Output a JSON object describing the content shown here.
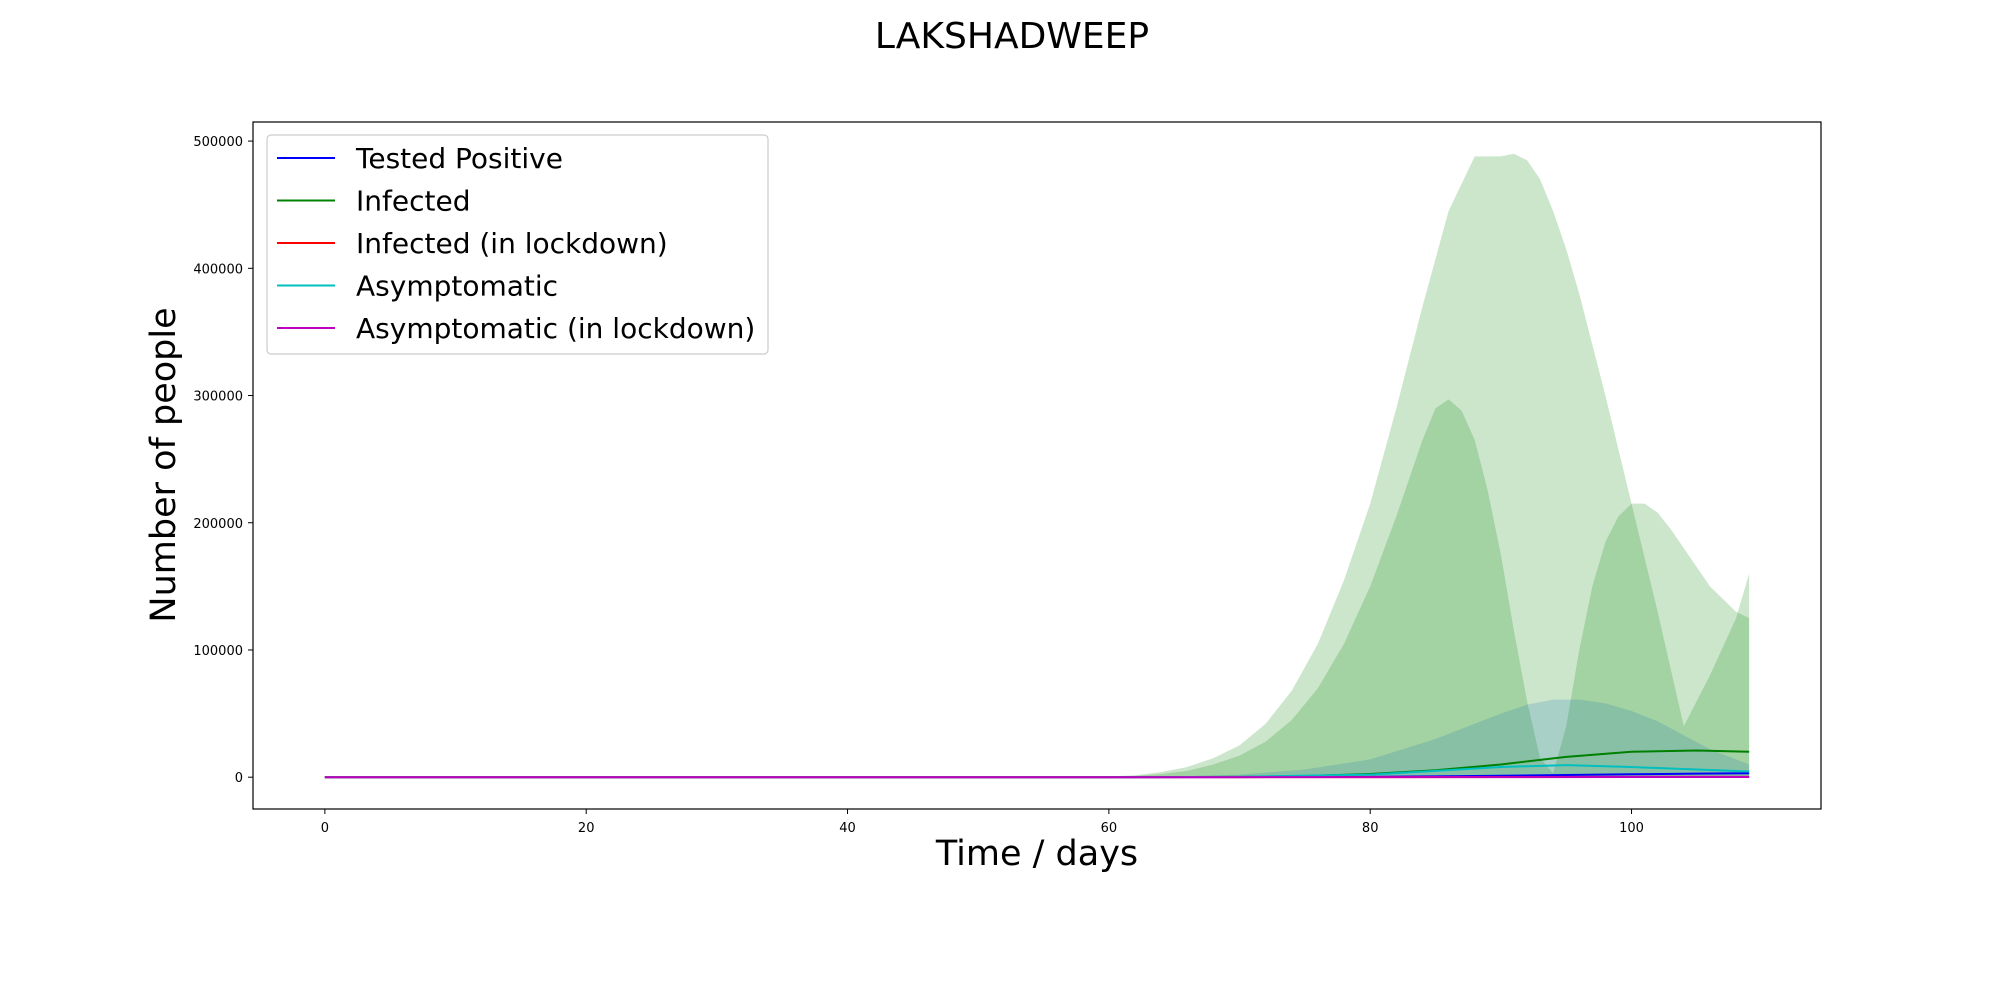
{
  "chart_data": {
    "type": "line",
    "title": "LAKSHADWEEP",
    "xlabel": "Time / days",
    "ylabel": "Number of people",
    "xlim": [
      -5.5,
      114.5
    ],
    "ylim": [
      -25000,
      515000
    ],
    "xticks": [
      0,
      20,
      40,
      60,
      80,
      100
    ],
    "yticks": [
      0,
      100000,
      200000,
      300000,
      400000,
      500000
    ],
    "grid": false,
    "legend_position": "upper-left",
    "series": [
      {
        "name": "Tested Positive",
        "color": "#0000ff",
        "x": [
          0,
          60,
          70,
          80,
          85,
          90,
          95,
          100,
          105,
          109
        ],
        "y": [
          0,
          0,
          50,
          300,
          600,
          1100,
          1700,
          2300,
          2800,
          3100
        ]
      },
      {
        "name": "Infected",
        "color": "#008000",
        "x": [
          0,
          60,
          70,
          75,
          80,
          85,
          90,
          95,
          100,
          105,
          109
        ],
        "y": [
          0,
          0,
          300,
          900,
          2500,
          5500,
          10000,
          16000,
          20000,
          21000,
          20000
        ]
      },
      {
        "name": "Infected (in lockdown)",
        "color": "#ff0000",
        "x": [
          0,
          60,
          80,
          90,
          100,
          109
        ],
        "y": [
          0,
          0,
          50,
          150,
          250,
          300
        ]
      },
      {
        "name": "Asymptomatic",
        "color": "#00bfbf",
        "x": [
          0,
          60,
          70,
          80,
          85,
          90,
          95,
          100,
          105,
          109
        ],
        "y": [
          0,
          0,
          300,
          2000,
          5000,
          8000,
          9500,
          8000,
          6000,
          4500
        ]
      },
      {
        "name": "Asymptomatic (in lockdown)",
        "color": "#bf00bf",
        "x": [
          0,
          60,
          80,
          90,
          100,
          109
        ],
        "y": [
          0,
          0,
          30,
          80,
          120,
          150
        ]
      }
    ],
    "bands": [
      {
        "color": "#008000",
        "opacity": 0.2,
        "x": [
          60,
          62,
          64,
          66,
          68,
          70,
          72,
          74,
          76,
          78,
          80,
          82,
          84,
          86,
          88,
          90,
          91,
          92,
          93,
          94,
          95,
          96,
          98,
          100,
          102,
          104,
          106,
          108,
          109
        ],
        "y": [
          500,
          1500,
          4000,
          8000,
          15000,
          25000,
          42000,
          68000,
          105000,
          155000,
          215000,
          290000,
          370000,
          445000,
          488000,
          488000,
          490000,
          485000,
          470000,
          445000,
          415000,
          380000,
          300000,
          215000,
          130000,
          40000,
          80000,
          125000,
          160000
        ]
      },
      {
        "color": "#008000",
        "opacity": 0.2,
        "x": [
          60,
          62,
          64,
          66,
          68,
          70,
          72,
          74,
          76,
          78,
          80,
          82,
          84,
          85,
          86,
          87,
          88,
          89,
          90,
          91,
          92,
          93,
          94,
          95,
          96,
          97,
          98,
          99,
          100,
          101,
          102,
          103,
          104,
          105,
          106,
          107,
          108,
          109
        ],
        "y": [
          300,
          1000,
          2500,
          5000,
          10000,
          17000,
          28000,
          45000,
          70000,
          105000,
          150000,
          205000,
          265000,
          290000,
          297000,
          288000,
          265000,
          225000,
          175000,
          115000,
          60000,
          15000,
          3000,
          40000,
          100000,
          150000,
          185000,
          205000,
          215000,
          215000,
          208000,
          195000,
          180000,
          165000,
          150000,
          140000,
          130000,
          125000
        ]
      },
      {
        "color": "#1f77b4",
        "opacity": 0.2,
        "x": [
          60,
          65,
          70,
          75,
          80,
          85,
          88,
          90,
          92,
          94,
          96,
          98,
          100,
          102,
          104,
          106,
          108,
          109
        ],
        "y": [
          0,
          400,
          2000,
          6000,
          14000,
          30000,
          42000,
          50000,
          57000,
          61000,
          61000,
          58000,
          52000,
          44000,
          33000,
          22000,
          14000,
          10000
        ]
      }
    ]
  }
}
